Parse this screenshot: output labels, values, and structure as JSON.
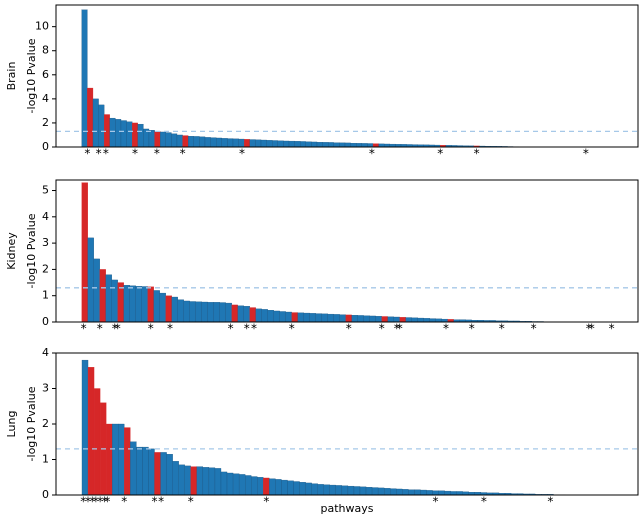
{
  "chart_data": [
    {
      "type": "bar",
      "group_label": "Brain",
      "ylabel": "-log10 Pvalue",
      "color": "#1f77b4",
      "highlight_color": "#d62728",
      "values": [
        11.4,
        4.9,
        4.0,
        3.5,
        2.7,
        2.4,
        2.3,
        2.2,
        2.1,
        2.0,
        1.9,
        1.5,
        1.4,
        1.3,
        1.25,
        1.2,
        1.1,
        1.0,
        0.95,
        0.9,
        0.88,
        0.85,
        0.8,
        0.78,
        0.75,
        0.72,
        0.7,
        0.68,
        0.66,
        0.64,
        0.62,
        0.6,
        0.58,
        0.56,
        0.54,
        0.52,
        0.5,
        0.49,
        0.48,
        0.46,
        0.44,
        0.42,
        0.4,
        0.39,
        0.38,
        0.36,
        0.35,
        0.34,
        0.32,
        0.31,
        0.3,
        0.29,
        0.28,
        0.26,
        0.25,
        0.24,
        0.23,
        0.22,
        0.21,
        0.2,
        0.19,
        0.18,
        0.17,
        0.16,
        0.15,
        0.14,
        0.13,
        0.12,
        0.11,
        0.1,
        0.09,
        0.08,
        0.07,
        0.07,
        0.06,
        0.05,
        0.04,
        0.03,
        0.02,
        0.01
      ],
      "highlight": [
        1,
        4,
        9,
        13,
        18,
        29,
        52,
        64,
        70
      ],
      "markers": [
        {
          "x": 1,
          "label": "*"
        },
        {
          "x": 3,
          "label": "*"
        },
        {
          "x": 4.3,
          "label": "*"
        },
        {
          "x": 9.5,
          "label": "*"
        },
        {
          "x": 13.4,
          "label": "*"
        },
        {
          "x": 18,
          "label": "*"
        },
        {
          "x": 28.6,
          "label": "*"
        },
        {
          "x": 51.8,
          "label": "*"
        },
        {
          "x": 64,
          "label": "*"
        },
        {
          "x": 70.5,
          "label": "*"
        },
        {
          "x": 90,
          "label": "*"
        }
      ],
      "threshold": 1.3,
      "threshold_color": "#a6c8e8",
      "xlim": [
        -4.6,
        99.3
      ],
      "ylim": [
        0,
        11.8
      ],
      "yticks": [
        0,
        2,
        4,
        6,
        8,
        10
      ]
    },
    {
      "type": "bar",
      "group_label": "Kidney",
      "ylabel": "-log10 Pvalue",
      "color": "#1f77b4",
      "highlight_color": "#d62728",
      "values": [
        5.3,
        3.2,
        2.4,
        2.0,
        1.8,
        1.6,
        1.5,
        1.4,
        1.38,
        1.36,
        1.35,
        1.34,
        1.2,
        1.1,
        1.0,
        0.95,
        0.85,
        0.8,
        0.78,
        0.77,
        0.76,
        0.75,
        0.75,
        0.74,
        0.72,
        0.65,
        0.62,
        0.6,
        0.55,
        0.5,
        0.48,
        0.45,
        0.42,
        0.4,
        0.38,
        0.36,
        0.35,
        0.34,
        0.33,
        0.32,
        0.31,
        0.3,
        0.29,
        0.28,
        0.27,
        0.26,
        0.25,
        0.24,
        0.23,
        0.22,
        0.21,
        0.2,
        0.19,
        0.18,
        0.17,
        0.16,
        0.15,
        0.14,
        0.13,
        0.12,
        0.11,
        0.1,
        0.09,
        0.09,
        0.08,
        0.07,
        0.07,
        0.06,
        0.06,
        0.05,
        0.05,
        0.04,
        0.04,
        0.03,
        0.03,
        0.02,
        0.02,
        0.01,
        0.01,
        0.01
      ],
      "highlight": [
        0,
        3,
        6,
        11,
        14,
        25,
        28,
        35,
        44,
        50,
        53,
        61
      ],
      "markers": [
        {
          "x": 0.3,
          "label": "*"
        },
        {
          "x": 3,
          "label": "*"
        },
        {
          "x": 5.5,
          "label": "*"
        },
        {
          "x": 6,
          "label": "*"
        },
        {
          "x": 11.5,
          "label": "*"
        },
        {
          "x": 14.7,
          "label": "*"
        },
        {
          "x": 24.8,
          "label": "*"
        },
        {
          "x": 27.5,
          "label": "*"
        },
        {
          "x": 28.7,
          "label": "*"
        },
        {
          "x": 35,
          "label": "*"
        },
        {
          "x": 44.5,
          "label": "*"
        },
        {
          "x": 50,
          "label": "*"
        },
        {
          "x": 52.5,
          "label": "*"
        },
        {
          "x": 53,
          "label": "*"
        },
        {
          "x": 60.7,
          "label": "*"
        },
        {
          "x": 65,
          "label": "*"
        },
        {
          "x": 70,
          "label": "*"
        },
        {
          "x": 75.3,
          "label": "*"
        },
        {
          "x": 84.5,
          "label": "*"
        },
        {
          "x": 85,
          "label": "*"
        },
        {
          "x": 88.3,
          "label": "*"
        }
      ],
      "threshold": 1.3,
      "threshold_color": "#a6c8e8",
      "xlim": [
        -4.3,
        92.7
      ],
      "ylim": [
        0,
        5.4
      ],
      "yticks": [
        0,
        1,
        2,
        3,
        4,
        5
      ]
    },
    {
      "type": "bar",
      "group_label": "Lung",
      "ylabel": "-log10 Pvalue",
      "xlabel": "pathways",
      "color": "#1f77b4",
      "highlight_color": "#d62728",
      "values": [
        3.8,
        3.6,
        3.0,
        2.6,
        2.0,
        2.0,
        2.0,
        1.9,
        1.5,
        1.35,
        1.35,
        1.3,
        1.2,
        1.2,
        1.15,
        0.95,
        0.85,
        0.82,
        0.8,
        0.8,
        0.78,
        0.77,
        0.75,
        0.65,
        0.62,
        0.6,
        0.58,
        0.55,
        0.52,
        0.5,
        0.48,
        0.46,
        0.44,
        0.42,
        0.4,
        0.38,
        0.36,
        0.34,
        0.32,
        0.3,
        0.29,
        0.28,
        0.27,
        0.26,
        0.25,
        0.24,
        0.23,
        0.22,
        0.21,
        0.2,
        0.19,
        0.18,
        0.17,
        0.16,
        0.15,
        0.15,
        0.14,
        0.13,
        0.12,
        0.12,
        0.11,
        0.1,
        0.1,
        0.09,
        0.08,
        0.08,
        0.07,
        0.06,
        0.06,
        0.05,
        0.05,
        0.04,
        0.04,
        0.03,
        0.03,
        0.02,
        0.02,
        0.02,
        0.01,
        0.01
      ],
      "highlight": [
        1,
        2,
        3,
        4,
        7,
        12,
        18,
        30
      ],
      "markers": [
        {
          "x": 0.2,
          "label": "*"
        },
        {
          "x": 1,
          "label": "*"
        },
        {
          "x": 1.7,
          "label": "*"
        },
        {
          "x": 2.3,
          "label": "*"
        },
        {
          "x": 3,
          "label": "*"
        },
        {
          "x": 3.7,
          "label": "*"
        },
        {
          "x": 4.2,
          "label": "*"
        },
        {
          "x": 7,
          "label": "*"
        },
        {
          "x": 12,
          "label": "*"
        },
        {
          "x": 13.1,
          "label": "*"
        },
        {
          "x": 18,
          "label": "*"
        },
        {
          "x": 30.5,
          "label": "*"
        },
        {
          "x": 58.5,
          "label": "*"
        },
        {
          "x": 66.5,
          "label": "*"
        },
        {
          "x": 77.5,
          "label": "*"
        }
      ],
      "threshold": 1.3,
      "threshold_color": "#a6c8e8",
      "xlim": [
        -4.3,
        92
      ],
      "ylim": [
        0,
        4.0
      ],
      "yticks": [
        0,
        1,
        2,
        3,
        4
      ]
    }
  ]
}
